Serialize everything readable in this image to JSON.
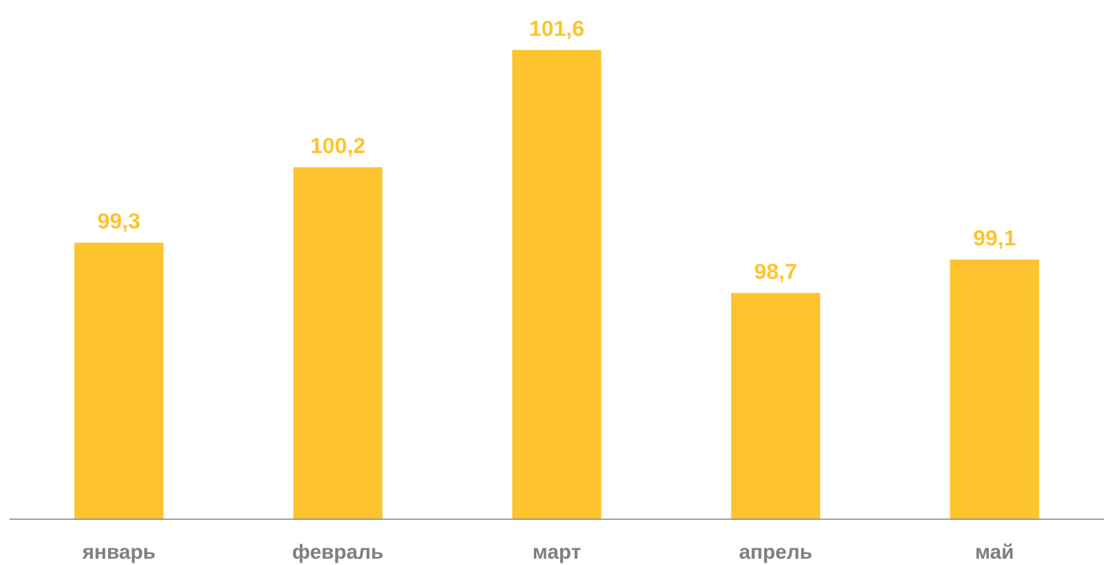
{
  "chart_data": {
    "type": "bar",
    "categories": [
      "январь",
      "февраль",
      "март",
      "апрель",
      "май"
    ],
    "values": [
      99.3,
      100.2,
      101.6,
      98.7,
      99.1
    ],
    "value_labels": [
      "99,3",
      "100,2",
      "101,6",
      "98,7",
      "99,1"
    ],
    "title": "",
    "xlabel": "",
    "ylabel": "",
    "ylim": [
      96.0,
      101.65
    ],
    "grid": false,
    "y_axis_visible": false,
    "colors": {
      "bar": "#fdc42d",
      "value_label": "#fdc42d",
      "category_label": "#7f7f7f",
      "axis_line": "#8c8c8c"
    }
  }
}
